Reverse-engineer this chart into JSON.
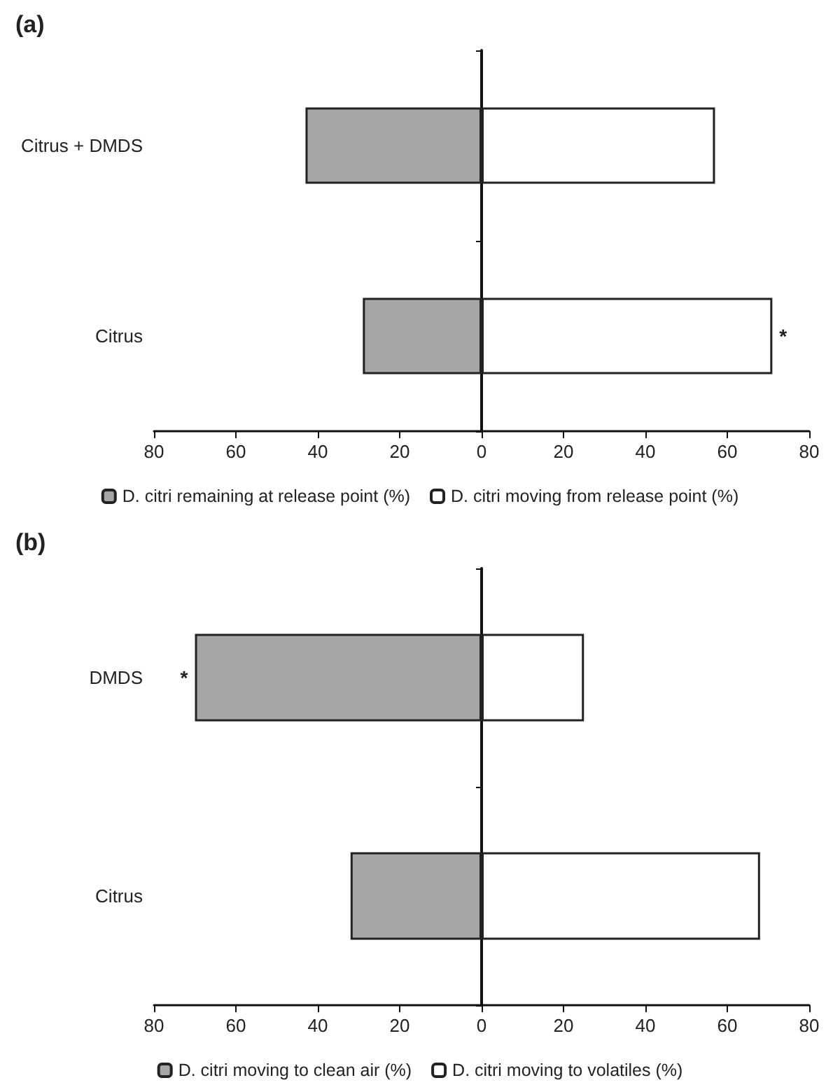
{
  "chart_data": [
    {
      "type": "bar",
      "title": "(a)",
      "orientation": "horizontal",
      "stacked": true,
      "categories": [
        "Citrus + DMDS",
        "Citrus"
      ],
      "series": [
        {
          "name": "D. citri remaining at release point (%)",
          "color": "#a6a6a6",
          "values": [
            -43,
            -29
          ]
        },
        {
          "name": "D. citri moving from release point (%)",
          "color": "#ffffff",
          "values": [
            57,
            71
          ]
        }
      ],
      "xlim": [
        -80,
        80
      ],
      "xticks": [
        {
          "value": -80,
          "label": "80"
        },
        {
          "value": -60,
          "label": "60"
        },
        {
          "value": -40,
          "label": "40"
        },
        {
          "value": -20,
          "label": "20"
        },
        0,
        20,
        40,
        60,
        80
      ],
      "annotations": [
        {
          "text": "*",
          "x": 71,
          "y": "Citrus"
        }
      ],
      "legend": "bottom"
    },
    {
      "type": "bar",
      "title": "(b)",
      "orientation": "horizontal",
      "stacked": true,
      "categories": [
        "DMDS",
        "Citrus"
      ],
      "series": [
        {
          "name": "D. citri moving to clean air (%)",
          "color": "#a6a6a6",
          "values": [
            -70,
            -32
          ]
        },
        {
          "name": "D. citri moving to volatiles (%)",
          "color": "#ffffff",
          "values": [
            25,
            68
          ]
        }
      ],
      "xlim": [
        -80,
        80
      ],
      "xticks": [
        {
          "value": -80,
          "label": "80"
        },
        {
          "value": -60,
          "label": "60"
        },
        {
          "value": -40,
          "label": "40"
        },
        {
          "value": -20,
          "label": "20"
        },
        0,
        20,
        40,
        60,
        80
      ],
      "annotations": [
        {
          "text": "*",
          "x": -70,
          "y": "DMDS"
        }
      ],
      "legend": "bottom"
    }
  ]
}
